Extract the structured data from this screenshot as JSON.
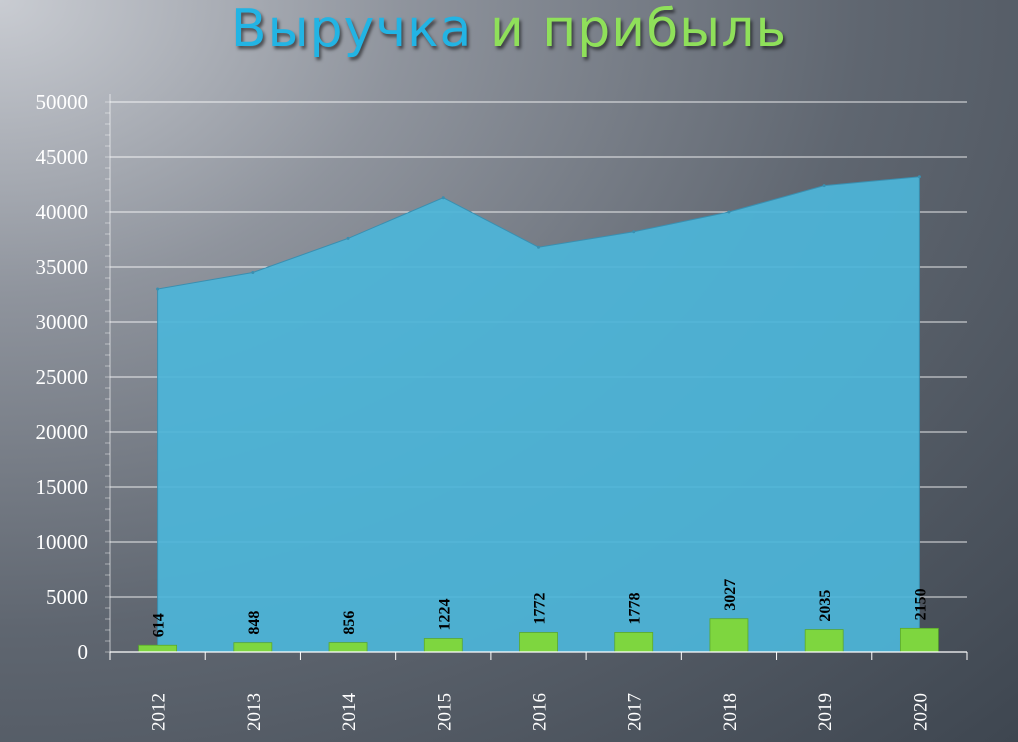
{
  "title": {
    "part1": "Выручка",
    "part2": "и прибыль"
  },
  "colors": {
    "title_part1": "#22b4e4",
    "title_part2": "#8fe05a",
    "revenue_area": "#4cb5d8",
    "profit_bars": "#7ed63f"
  },
  "chart_data": {
    "type": "area",
    "title": "Выручка и прибыль",
    "categories": [
      "2012",
      "2013",
      "2014",
      "2015",
      "2016",
      "2017",
      "2018",
      "2019",
      "2020"
    ],
    "series": [
      {
        "type": "area",
        "values": [
          33000,
          34500,
          37600,
          41300,
          36800,
          38200,
          40000,
          42400,
          43200
        ]
      },
      {
        "type": "bar",
        "values": [
          614,
          848,
          856,
          1224,
          1772,
          1778,
          3027,
          2035,
          2150
        ]
      }
    ],
    "ylim": [
      0,
      50000
    ],
    "yticks": [
      "0",
      "5000",
      "10000",
      "15000",
      "20000",
      "25000",
      "30000",
      "35000",
      "40000",
      "45000",
      "50000"
    ],
    "grid": true,
    "legend": "none"
  }
}
